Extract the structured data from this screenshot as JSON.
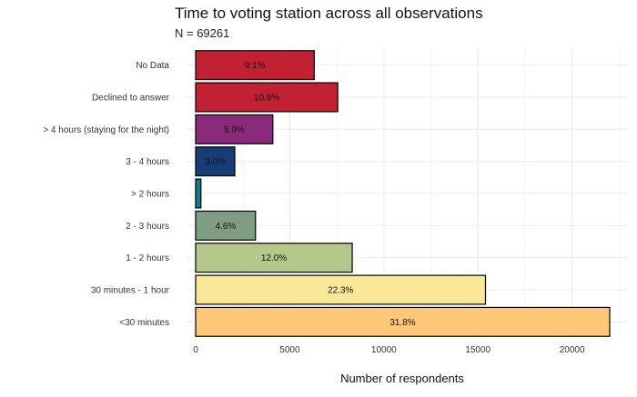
{
  "chart_data": {
    "type": "bar",
    "orientation": "horizontal",
    "title": "Time to voting station across all observations",
    "subtitle": "N = 69261",
    "xlabel": "Number of respondents",
    "ylabel": "",
    "xlim": [
      0,
      22000
    ],
    "xticks": [
      0,
      5000,
      10000,
      15000,
      20000
    ],
    "xtick_labels": [
      "0",
      "5000",
      "10000",
      "15000",
      "20000"
    ],
    "grid": true,
    "legend": "none",
    "categories": [
      "No Data",
      "Declined to answer",
      "> 4 hours (staying for the night)",
      "3 - 4 hours",
      "> 2 hours",
      "2 - 3 hours",
      "1 - 2 hours",
      "30 minutes - 1 hour",
      "<30 minutes"
    ],
    "values": [
      6300,
      7550,
      4100,
      2080,
      280,
      3180,
      8320,
      15400,
      22000
    ],
    "labels": [
      "9.1%",
      "10.9%",
      "5.9%",
      "3.0%",
      "",
      "4.6%",
      "12.0%",
      "22.3%",
      "31.8%"
    ],
    "colors": [
      "#c22033",
      "#c22033",
      "#8a2a7a",
      "#163d75",
      "#0e7f83",
      "#7f9d80",
      "#b5c88c",
      "#fae899",
      "#ffc878"
    ]
  }
}
